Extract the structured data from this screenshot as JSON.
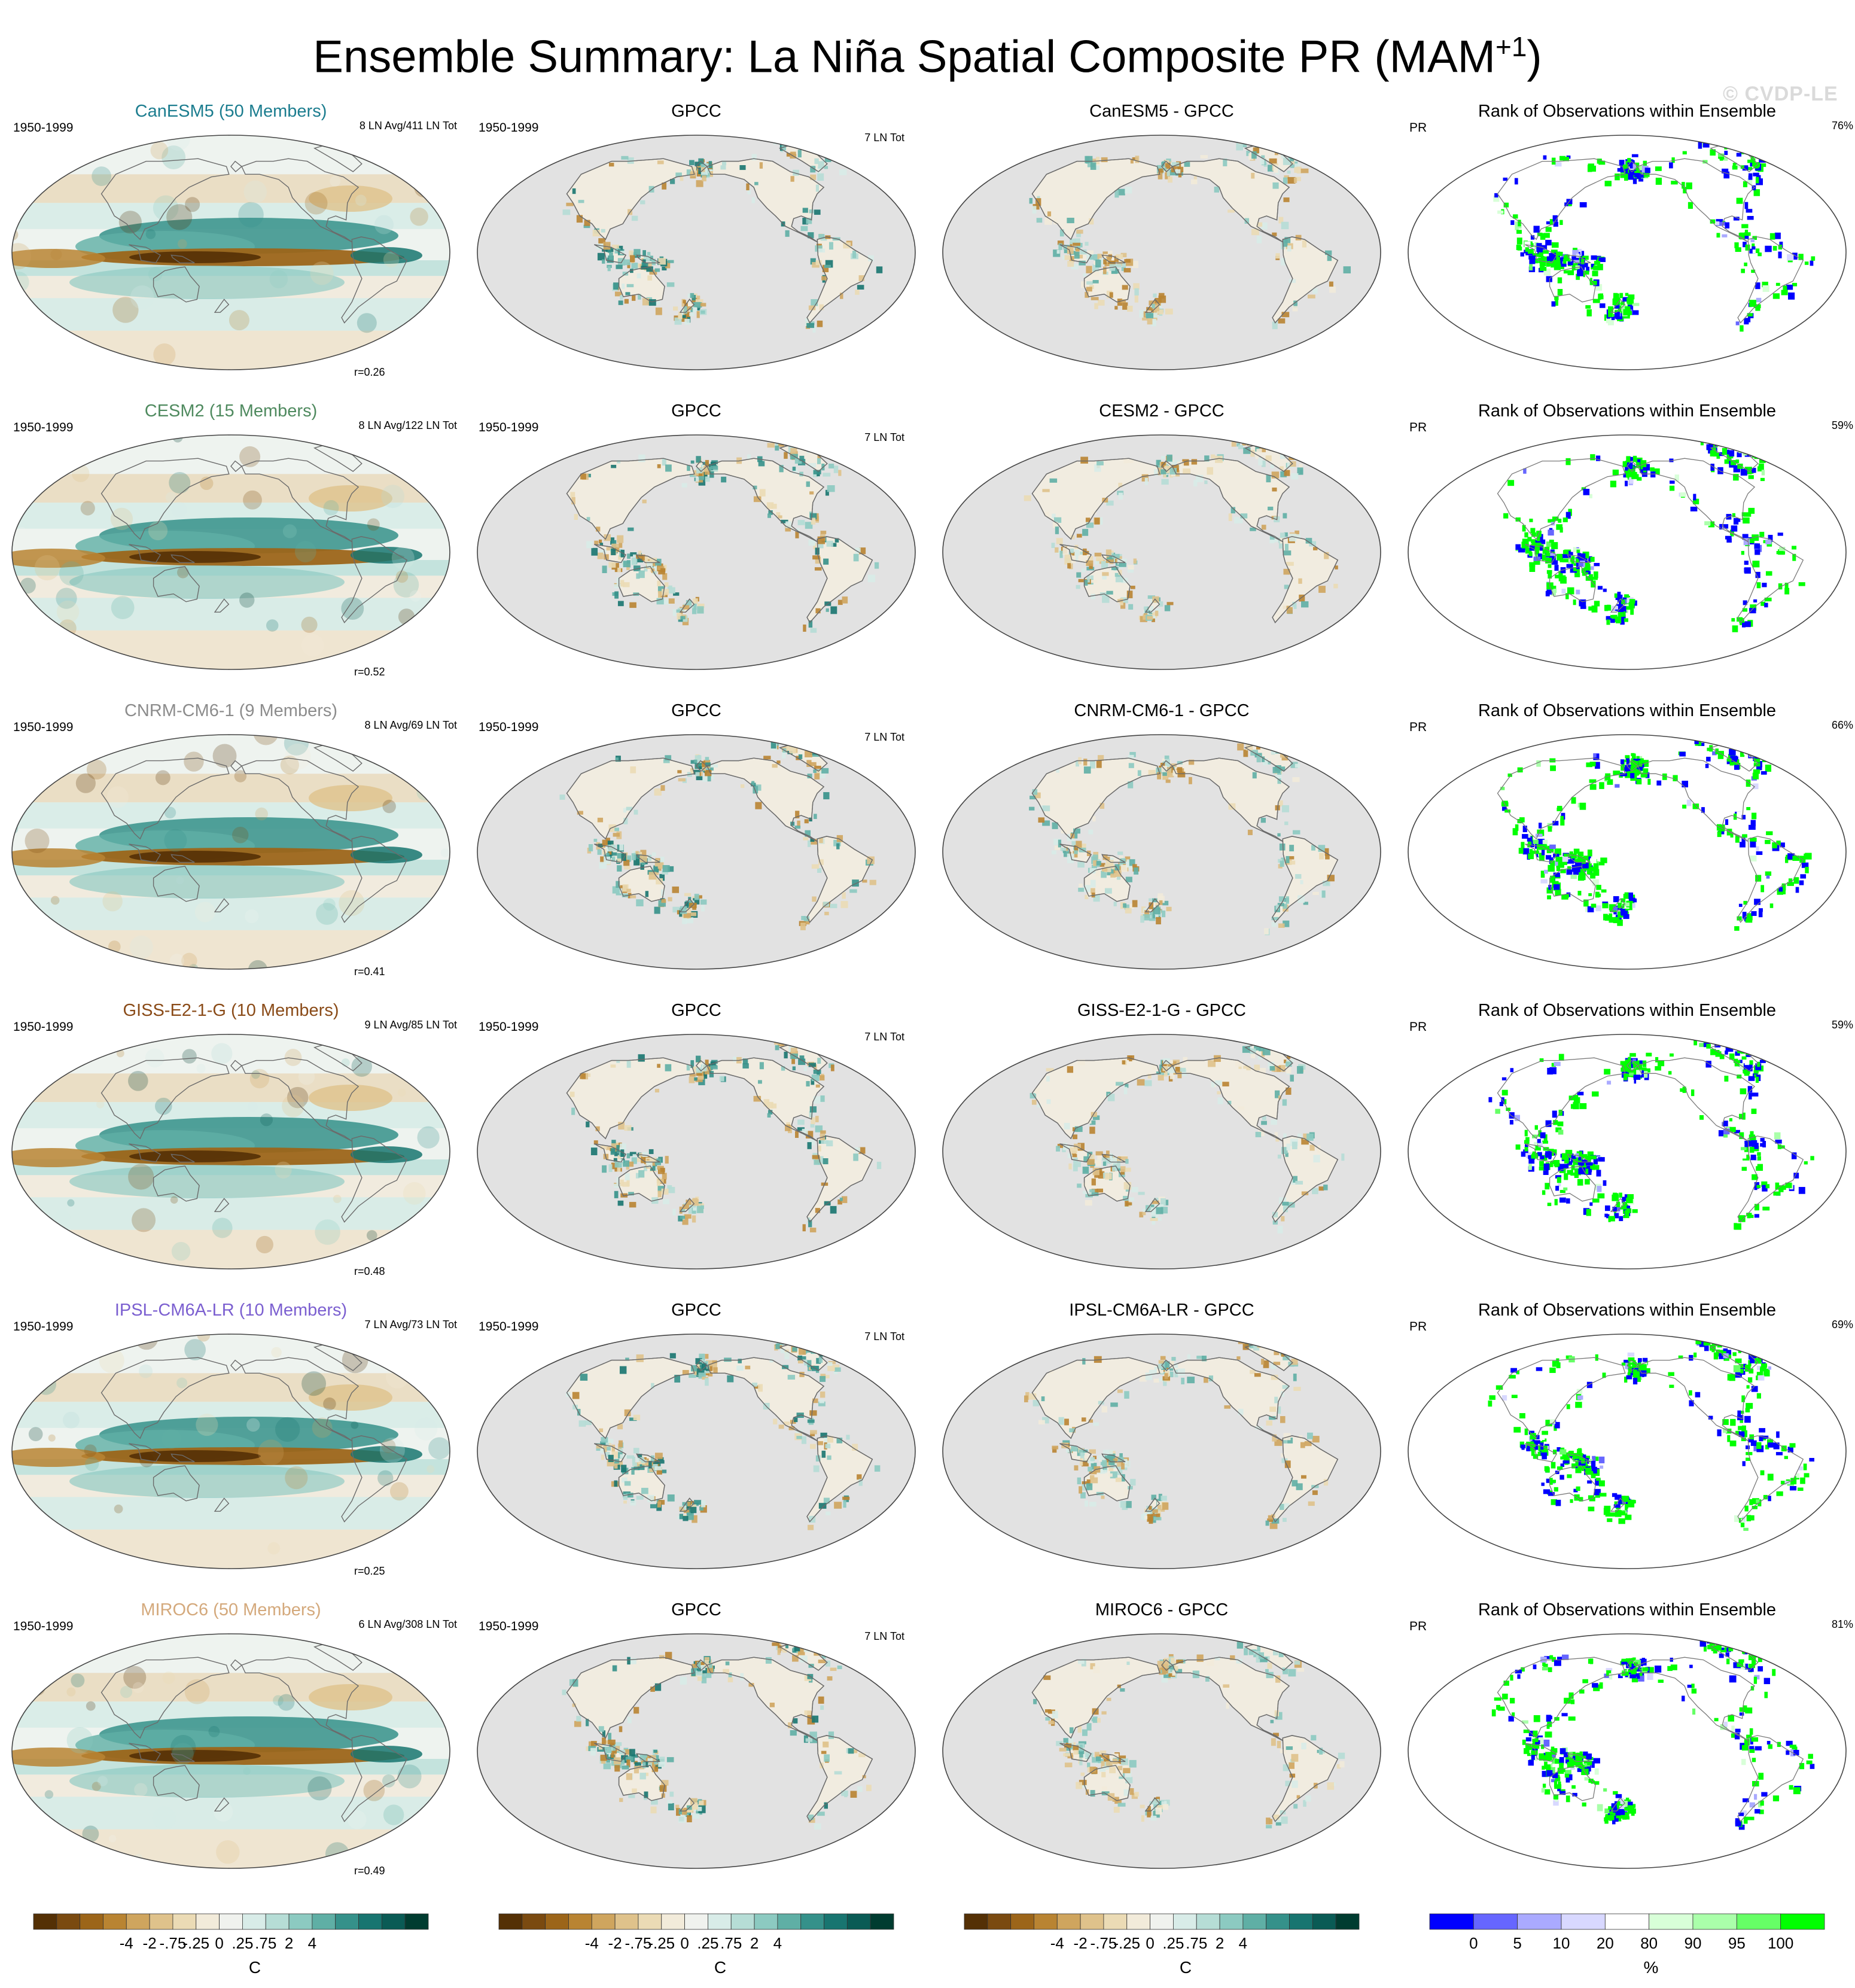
{
  "title": "Ensemble Summary: La Niña Spatial Composite PR (MAM",
  "title_sup": "+1",
  "title_end": ")",
  "watermark": "© CVDP-LE",
  "colors": {
    "brown_teal": [
      "#543005",
      "#7a4a10",
      "#9c6519",
      "#b98432",
      "#cfa55e",
      "#dfc28b",
      "#ebdbb5",
      "#f2ebda",
      "#f0f2ee",
      "#d8ece8",
      "#b6ddd6",
      "#8ccac1",
      "#5fafa5",
      "#35918a",
      "#187570",
      "#0a5b55",
      "#003c30"
    ],
    "rank": [
      "#0000ff",
      "#6666ff",
      "#aaaaff",
      "#d8d8ff",
      "#ffffff",
      "#d8ffd8",
      "#aaffaa",
      "#66ff66",
      "#00ff00"
    ],
    "model_colors": {
      "CanESM5": "#1c7d8f",
      "CESM2": "#4f8a5f",
      "CNRM-CM6-1": "#8c8c8c",
      "GISS-E2-1-G": "#8a4b18",
      "IPSL-CM6A-LR": "#7b5fd0",
      "MIROC6": "#d4a97c"
    },
    "land_gray": "#e2e2e2"
  },
  "rows": [
    {
      "model": "CanESM5",
      "model_title": "CanESM5 (50 Members)",
      "period": "1950-1999",
      "counts": "8 LN Avg/411 LN Tot",
      "r": "r=0.26",
      "obs_title": "GPCC",
      "obs_period": "1950-1999",
      "obs_count": "7 LN Tot",
      "diff_title": "CanESM5 - GPCC",
      "rank_title": "Rank of Observations within Ensemble",
      "rank_var": "PR",
      "rank_pct": "76%"
    },
    {
      "model": "CESM2",
      "model_title": "CESM2 (15 Members)",
      "period": "1950-1999",
      "counts": "8 LN Avg/122 LN Tot",
      "r": "r=0.52",
      "obs_title": "GPCC",
      "obs_period": "1950-1999",
      "obs_count": "7 LN Tot",
      "diff_title": "CESM2 - GPCC",
      "rank_title": "Rank of Observations within Ensemble",
      "rank_var": "PR",
      "rank_pct": "59%"
    },
    {
      "model": "CNRM-CM6-1",
      "model_title": "CNRM-CM6-1 (9 Members)",
      "period": "1950-1999",
      "counts": "8 LN Avg/69 LN Tot",
      "r": "r=0.41",
      "obs_title": "GPCC",
      "obs_period": "1950-1999",
      "obs_count": "7 LN Tot",
      "diff_title": "CNRM-CM6-1 - GPCC",
      "rank_title": "Rank of Observations within Ensemble",
      "rank_var": "PR",
      "rank_pct": "66%"
    },
    {
      "model": "GISS-E2-1-G",
      "model_title": "GISS-E2-1-G (10 Members)",
      "period": "1950-1999",
      "counts": "9 LN Avg/85 LN Tot",
      "r": "r=0.48",
      "obs_title": "GPCC",
      "obs_period": "1950-1999",
      "obs_count": "7 LN Tot",
      "diff_title": "GISS-E2-1-G - GPCC",
      "rank_title": "Rank of Observations within Ensemble",
      "rank_var": "PR",
      "rank_pct": "59%"
    },
    {
      "model": "IPSL-CM6A-LR",
      "model_title": "IPSL-CM6A-LR (10 Members)",
      "period": "1950-1999",
      "counts": "7 LN Avg/73 LN Tot",
      "r": "r=0.25",
      "obs_title": "GPCC",
      "obs_period": "1950-1999",
      "obs_count": "7 LN Tot",
      "diff_title": "IPSL-CM6A-LR - GPCC",
      "rank_title": "Rank of Observations within Ensemble",
      "rank_var": "PR",
      "rank_pct": "69%"
    },
    {
      "model": "MIROC6",
      "model_title": "MIROC6 (50 Members)",
      "period": "1950-1999",
      "counts": "6 LN Avg/308 LN Tot",
      "r": "r=0.49",
      "obs_title": "GPCC",
      "obs_period": "1950-1999",
      "obs_count": "7 LN Tot",
      "diff_title": "MIROC6 - GPCC",
      "rank_title": "Rank of Observations within Ensemble",
      "rank_var": "PR",
      "rank_pct": "81%"
    }
  ],
  "colorbars": [
    {
      "ticks": [
        "-4",
        "-2",
        "-.75",
        "-.25",
        "0",
        ".25",
        ".75",
        "2",
        "4"
      ],
      "unit": "C"
    },
    {
      "ticks": [
        "-4",
        "-2",
        "-.75",
        "-.25",
        "0",
        ".25",
        ".75",
        "2",
        "4"
      ],
      "unit": "C"
    },
    {
      "ticks": [
        "-4",
        "-2",
        "-.75",
        "-.25",
        "0",
        ".25",
        ".75",
        "2",
        "4"
      ],
      "unit": "C"
    },
    {
      "ticks": [
        "0",
        "5",
        "10",
        "20",
        "80",
        "90",
        "95",
        "100"
      ],
      "unit": "%"
    }
  ]
}
